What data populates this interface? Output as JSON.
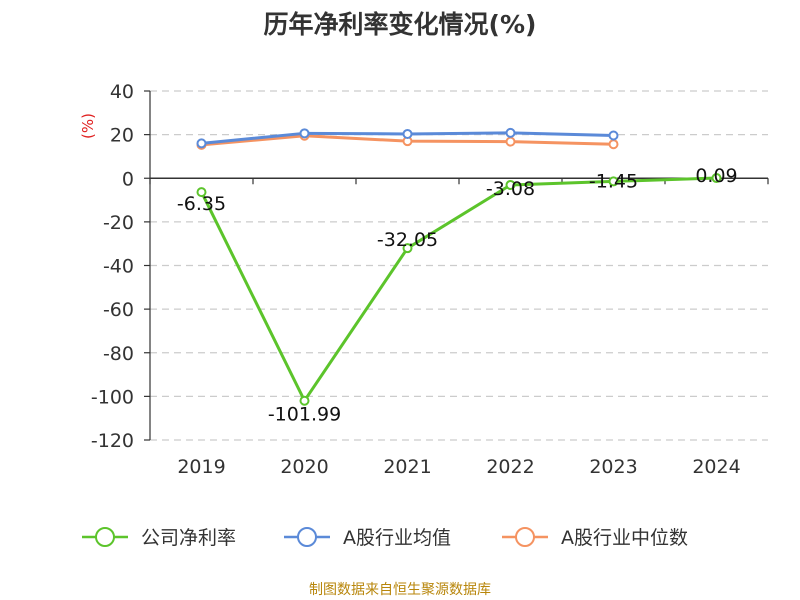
{
  "chart_data": {
    "type": "line",
    "title": "历年净利率变化情况(%)",
    "ylabel": "(%)",
    "categories": [
      "2019",
      "2020",
      "2021",
      "2022",
      "2023",
      "2024"
    ],
    "ylim": [
      -120,
      40
    ],
    "yticks": [
      40,
      20,
      0,
      -20,
      -40,
      -60,
      -80,
      -100,
      -120
    ],
    "grid": true,
    "legend_position": "bottom",
    "series": [
      {
        "name": "公司净利率",
        "color": "#5cc42b",
        "values": [
          -6.35,
          -101.99,
          -32.05,
          -3.08,
          -1.45,
          0.09
        ],
        "labels": [
          "-6.35",
          "-101.99",
          "-32.05",
          "-3.08",
          "-1.45",
          "0.09"
        ]
      },
      {
        "name": "A股行业均值",
        "color": "#5b8ad8",
        "values": [
          16,
          20.6,
          20.3,
          20.8,
          19.6,
          null
        ]
      },
      {
        "name": "A股行业中位数",
        "color": "#f59361",
        "values": [
          15.3,
          19.5,
          17.0,
          16.8,
          15.6,
          null
        ]
      }
    ]
  },
  "source": "制图数据来自恒生聚源数据库"
}
